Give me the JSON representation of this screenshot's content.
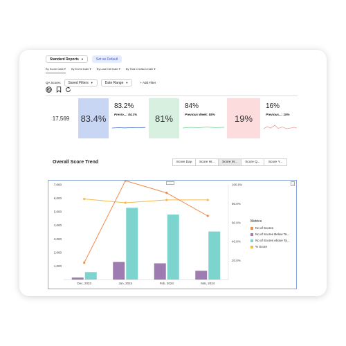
{
  "toolbar": {
    "report_select": "Standard Reports",
    "set_default": "Set as Default"
  },
  "tabs": [
    {
      "label": "By Score Date",
      "active": true
    },
    {
      "label": "By Event Date",
      "active": false
    },
    {
      "label": "By Last Edit Date",
      "active": false
    },
    {
      "label": "By Task Creation Date",
      "active": false
    }
  ],
  "filters": {
    "qa_scores": "QA Scores",
    "saved_filters": "Saved Filters",
    "date_range": "Date Range",
    "add_filter": "+ Add Filter"
  },
  "icons": [
    "target-icon",
    "bookmark-icon",
    "refresh-icon"
  ],
  "kpis": {
    "total": "17,569",
    "score_tile": "83.4%",
    "card1": {
      "value": "83.2%",
      "sub_label": "Previo...:",
      "sub_value": "84.1%"
    },
    "tile2": "81%",
    "card2": {
      "value": "84%",
      "sub_label": "Previous Week:",
      "sub_value": "85%"
    },
    "tile3": "19%",
    "card3": {
      "value": "16%",
      "sub_label": "Previous...:",
      "sub_value": "15%"
    }
  },
  "colors": {
    "tile_blue": "#c9d6f3",
    "tile_green": "#d7f0df",
    "tile_pink": "#fcdcdc",
    "spark_blue": "#4a6fd1",
    "spark_green": "#6fcf8e",
    "spark_pink": "#f09a9a",
    "scores": "#f08b4a",
    "below": "#9e7cb1",
    "above": "#7dd4cf",
    "pct": "#f5b94a"
  },
  "trend": {
    "title": "Overall Score Trend",
    "granularity": [
      {
        "label": "Score Day",
        "active": false
      },
      {
        "label": "Score W...",
        "active": false
      },
      {
        "label": "Score M...",
        "active": true
      },
      {
        "label": "Score Q...",
        "active": false
      },
      {
        "label": "Score Y...",
        "active": false
      }
    ]
  },
  "chart_data": {
    "type": "bar",
    "categories": [
      "Dec, 2023",
      "Jan, 2024",
      "Feb, 2024",
      "Mar, 2024"
    ],
    "series": [
      {
        "name": "No of Scores",
        "kind": "line",
        "axis": "left",
        "values": [
          1250,
          7300,
          6400,
          4700
        ]
      },
      {
        "name": "No of Scores Below Ta...",
        "kind": "bar",
        "axis": "left",
        "values": [
          150,
          1300,
          1200,
          650
        ]
      },
      {
        "name": "No of Scores Above Ta...",
        "kind": "bar",
        "axis": "left",
        "values": [
          550,
          5300,
          4800,
          3550
        ]
      },
      {
        "name": "% Score",
        "kind": "line",
        "axis": "right",
        "values": [
          85,
          81,
          84,
          84
        ]
      }
    ],
    "left_ticks": [
      "7,000",
      "6,000",
      "5,000",
      "4,000",
      "3,000",
      "2,000",
      "1,000"
    ],
    "right_ticks": [
      "100.0%",
      "80.0%",
      "60.0%",
      "40.0%",
      "20.0%"
    ],
    "ylim_left": [
      0,
      7000
    ],
    "ylim_right": [
      0,
      100
    ],
    "legend_title": "Metrics",
    "legend_position": "right"
  }
}
